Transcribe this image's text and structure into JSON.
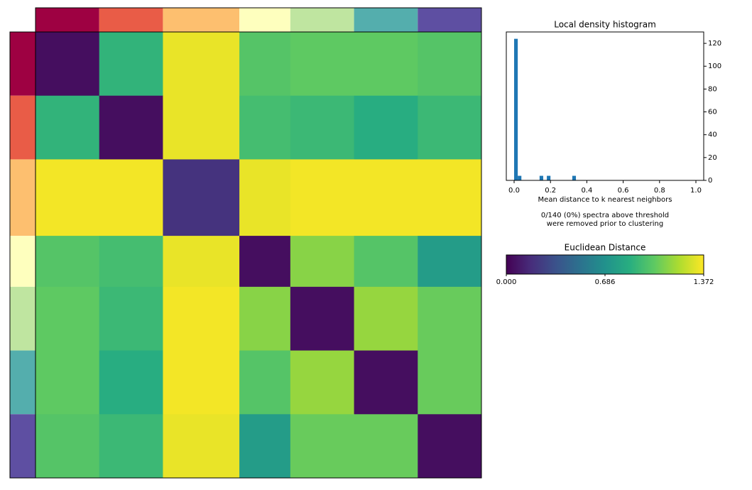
{
  "chart_data": [
    {
      "type": "heatmap",
      "sizes": [
        20,
        20,
        24,
        16,
        20,
        20,
        20
      ],
      "colors": [
        "#9e0142",
        "#e95c47",
        "#fdbf6f",
        "#feffbe",
        "#bfe5a0",
        "#54aead",
        "#5e4fa2"
      ],
      "values": [
        [
          0.05,
          0.89,
          1.33,
          1.0,
          1.03,
          1.03,
          1.0
        ],
        [
          0.89,
          0.05,
          1.33,
          0.95,
          0.92,
          0.85,
          0.92
        ],
        [
          1.35,
          1.35,
          0.2,
          1.33,
          1.35,
          1.35,
          1.35
        ],
        [
          1.0,
          0.95,
          1.33,
          0.05,
          1.12,
          1.0,
          0.75
        ],
        [
          1.03,
          0.92,
          1.35,
          1.12,
          0.05,
          1.15,
          1.05
        ],
        [
          1.03,
          0.85,
          1.35,
          1.0,
          1.15,
          0.05,
          1.05
        ],
        [
          1.0,
          0.92,
          1.33,
          0.75,
          1.05,
          1.05,
          0.05
        ]
      ]
    },
    {
      "type": "histogram",
      "title": "Local density histogram",
      "x_label": "Mean distance to k nearest neighbors",
      "annotation": [
        "0/140 (0%) spectra above threshold",
        "were removed prior to clustering"
      ],
      "color": "#1f77b4",
      "bins": [
        0,
        0.02,
        0.04,
        0.06,
        0.08,
        0.1,
        0.12,
        0.14,
        0.16,
        0.18,
        0.2,
        0.22,
        0.24,
        0.26,
        0.28,
        0.3,
        0.32,
        0.34,
        0.36,
        0.38,
        0.4,
        0.42,
        0.44,
        0.46,
        0.48,
        0.5,
        0.52,
        0.54,
        0.56,
        0.58,
        0.6,
        0.62,
        0.64,
        0.66,
        0.68,
        0.7,
        0.72,
        0.74,
        0.76,
        0.78,
        0.8,
        0.82,
        0.84,
        0.86,
        0.88,
        0.9,
        0.92,
        0.94,
        0.96,
        0.98,
        1.0
      ],
      "counts": [
        124,
        4,
        0,
        0,
        0,
        0,
        0,
        4,
        0,
        4,
        0,
        0,
        0,
        0,
        0,
        0,
        4,
        0,
        0,
        0,
        0,
        0,
        0,
        0,
        0,
        0,
        0,
        0,
        0,
        0,
        0,
        0,
        0,
        0,
        0,
        0,
        0,
        0,
        0,
        0,
        0,
        0,
        0,
        0,
        0,
        0,
        0,
        0,
        0,
        0
      ],
      "xlim": [
        -0.043,
        1.043
      ],
      "xticks": [
        {
          "value": 0,
          "label": "0.0"
        },
        {
          "value": 0.2,
          "label": "0.2"
        },
        {
          "value": 0.4,
          "label": "0.4"
        },
        {
          "value": 0.6,
          "label": "0.6"
        },
        {
          "value": 0.8,
          "label": "0.8"
        },
        {
          "value": 1,
          "label": "1.0"
        }
      ],
      "ylim": [
        0,
        130
      ],
      "yticks": [
        0,
        20,
        40,
        60,
        80,
        100,
        120
      ]
    },
    {
      "type": "colorbar",
      "title": "Euclidean Distance",
      "zlim": [
        0,
        1.372
      ],
      "ticks": [
        {
          "value": 0,
          "label": "0.000"
        },
        {
          "value": 0.686,
          "label": "0.686"
        },
        {
          "value": 1.372,
          "label": "1.372"
        }
      ],
      "colormap": [
        "#440154",
        "#472d7b",
        "#3b528b",
        "#2c728e",
        "#21918c",
        "#28ae80",
        "#5ec962",
        "#addc30",
        "#fde725"
      ]
    }
  ]
}
